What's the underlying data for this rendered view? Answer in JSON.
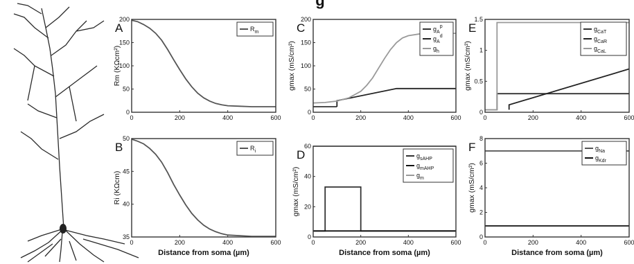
{
  "caption_fragment": "g",
  "chart_data": [
    {
      "id": "A",
      "type": "line",
      "panel_label": "A",
      "xlim": [
        0,
        600
      ],
      "ylim": [
        0,
        200
      ],
      "xticks": [
        "0",
        "200",
        "400",
        "600"
      ],
      "yticks": [
        "0",
        "50",
        "100",
        "150",
        "200"
      ],
      "xlabel": "",
      "ylabel": "Rm (KΩcm²)",
      "series": [
        {
          "name": "Rm",
          "color": "#555555",
          "x": [
            0,
            25,
            50,
            75,
            100,
            125,
            150,
            175,
            200,
            225,
            250,
            275,
            300,
            325,
            350,
            375,
            400,
            450,
            500,
            550,
            600
          ],
          "y": [
            198,
            195,
            189,
            181,
            170,
            155,
            135,
            113,
            92,
            72,
            55,
            41,
            31,
            24,
            19,
            16,
            14,
            13,
            12,
            12,
            12
          ]
        }
      ]
    },
    {
      "id": "B",
      "type": "line",
      "panel_label": "B",
      "xlim": [
        0,
        600
      ],
      "ylim": [
        35,
        50
      ],
      "xticks": [
        "0",
        "200",
        "400",
        "600"
      ],
      "yticks": [
        "35",
        "40",
        "45",
        "50"
      ],
      "xlabel": "Distance from soma (µm)",
      "ylabel": "Ri (KΩcm)",
      "series": [
        {
          "name": "Ri",
          "color": "#555555",
          "x": [
            0,
            25,
            50,
            75,
            100,
            125,
            150,
            175,
            200,
            225,
            250,
            275,
            300,
            325,
            350,
            375,
            400,
            450,
            500,
            550,
            600
          ],
          "y": [
            49.9,
            49.6,
            49.2,
            48.5,
            47.6,
            46.4,
            44.8,
            43.0,
            41.4,
            39.9,
            38.6,
            37.6,
            36.8,
            36.2,
            35.8,
            35.5,
            35.3,
            35.2,
            35.1,
            35.1,
            35.1
          ]
        }
      ]
    },
    {
      "id": "C",
      "type": "line",
      "panel_label": "C",
      "xlim": [
        0,
        600
      ],
      "ylim": [
        0,
        200
      ],
      "xticks": [
        "0",
        "200",
        "400",
        "600"
      ],
      "yticks": [
        "0",
        "50",
        "100",
        "150",
        "200"
      ],
      "xlabel": "",
      "ylabel": "gmax (mS/cm²)",
      "series": [
        {
          "name": "gA^p",
          "color": "#333333",
          "x": [
            0,
            100
          ],
          "y": [
            12,
            12
          ]
        },
        {
          "name": "gA^d",
          "color": "#222222",
          "x": [
            100,
            100,
            350,
            600
          ],
          "y": [
            12,
            25,
            51,
            51
          ]
        },
        {
          "name": "gh",
          "color": "#999999",
          "x": [
            0,
            50,
            100,
            150,
            200,
            225,
            250,
            275,
            300,
            325,
            350,
            375,
            400,
            450,
            500,
            550,
            600
          ],
          "y": [
            20,
            21,
            24,
            31,
            45,
            58,
            74,
            95,
            116,
            135,
            150,
            160,
            165,
            169,
            170,
            170,
            170
          ]
        }
      ]
    },
    {
      "id": "D",
      "type": "line",
      "panel_label": "D",
      "xlim": [
        0,
        600
      ],
      "ylim": [
        0,
        60
      ],
      "xticks": [
        "0",
        "200",
        "400",
        "600"
      ],
      "yticks": [
        "0",
        "20",
        "40",
        "60"
      ],
      "xlabel": "Distance from soma (µm)",
      "ylabel": "gmax (mS/cm²)",
      "series": [
        {
          "name": "gsAHP",
          "color": "#333333",
          "x": [
            0,
            50,
            50,
            200,
            200,
            600
          ],
          "y": [
            4,
            4,
            33,
            33,
            4,
            4
          ]
        },
        {
          "name": "gmAHP",
          "color": "#111111",
          "x": [
            0,
            600
          ],
          "y": [
            4,
            4
          ]
        },
        {
          "name": "gm",
          "color": "#999999",
          "x": [
            0,
            600
          ],
          "y": [
            60,
            60
          ]
        }
      ]
    },
    {
      "id": "E",
      "type": "line",
      "panel_label": "E",
      "xlim": [
        0,
        600
      ],
      "ylim": [
        0,
        1.5
      ],
      "xticks": [
        "0",
        "200",
        "400",
        "600"
      ],
      "yticks": [
        "0",
        "0.5",
        "1",
        "1.5"
      ],
      "xlabel": "",
      "ylabel": "gmax (mS/cm²)",
      "series": [
        {
          "name": "gCaT",
          "color": "#333333",
          "x": [
            0,
            50,
            50,
            600
          ],
          "y": [
            0.04,
            0.04,
            0.3,
            0.3
          ]
        },
        {
          "name": "gCaR",
          "color": "#222222",
          "x": [
            100,
            100,
            600
          ],
          "y": [
            0.04,
            0.12,
            0.7
          ]
        },
        {
          "name": "gCaL",
          "color": "#999999",
          "x": [
            0,
            50,
            50,
            600
          ],
          "y": [
            0.04,
            0.04,
            1.45,
            1.45
          ]
        }
      ]
    },
    {
      "id": "F",
      "type": "line",
      "panel_label": "F",
      "xlim": [
        0,
        600
      ],
      "ylim": [
        0,
        8
      ],
      "xticks": [
        "0",
        "200",
        "400",
        "600"
      ],
      "yticks": [
        "0",
        "2",
        "4",
        "6",
        "8"
      ],
      "xlabel": "Distance from soma (µm)",
      "ylabel": "gmax (mS/cm²)",
      "series": [
        {
          "name": "gNa",
          "color": "#555555",
          "x": [
            0,
            600
          ],
          "y": [
            7,
            7
          ]
        },
        {
          "name": "gKdr",
          "color": "#111111",
          "x": [
            0,
            600
          ],
          "y": [
            0.9,
            0.9
          ]
        }
      ]
    }
  ]
}
